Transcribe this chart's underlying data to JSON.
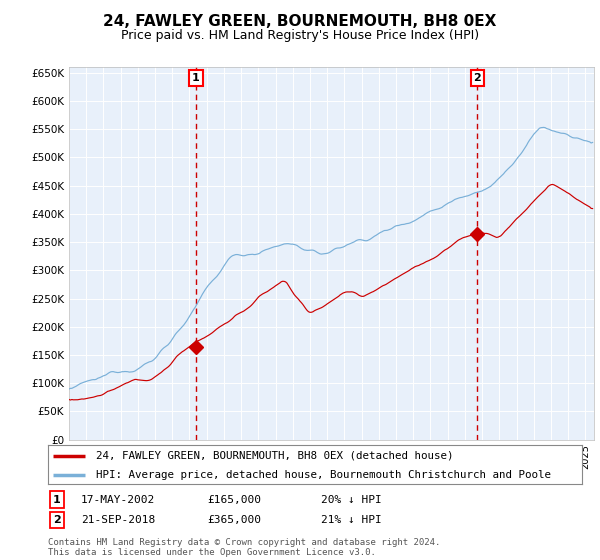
{
  "title": "24, FAWLEY GREEN, BOURNEMOUTH, BH8 0EX",
  "subtitle": "Price paid vs. HM Land Registry's House Price Index (HPI)",
  "title_fontsize": 11,
  "subtitle_fontsize": 9,
  "plot_bg_color": "#e8f0fa",
  "grid_color": "#c8d8ea",
  "sale1_date_x": 2002.37,
  "sale1_price": 165000,
  "sale2_date_x": 2018.72,
  "sale2_price": 365000,
  "xmin": 1995,
  "xmax": 2025.5,
  "ymin": 0,
  "ymax": 660000,
  "yticks": [
    0,
    50000,
    100000,
    150000,
    200000,
    250000,
    300000,
    350000,
    400000,
    450000,
    500000,
    550000,
    600000,
    650000
  ],
  "hpi_color": "#7ab0d8",
  "price_color": "#cc0000",
  "legend1_text": "24, FAWLEY GREEN, BOURNEMOUTH, BH8 0EX (detached house)",
  "legend2_text": "HPI: Average price, detached house, Bournemouth Christchurch and Poole",
  "note1_date": "17-MAY-2002",
  "note1_price": "£165,000",
  "note1_hpi": "20% ↓ HPI",
  "note2_date": "21-SEP-2018",
  "note2_price": "£365,000",
  "note2_hpi": "21% ↓ HPI",
  "footer": "Contains HM Land Registry data © Crown copyright and database right 2024.\nThis data is licensed under the Open Government Licence v3.0."
}
